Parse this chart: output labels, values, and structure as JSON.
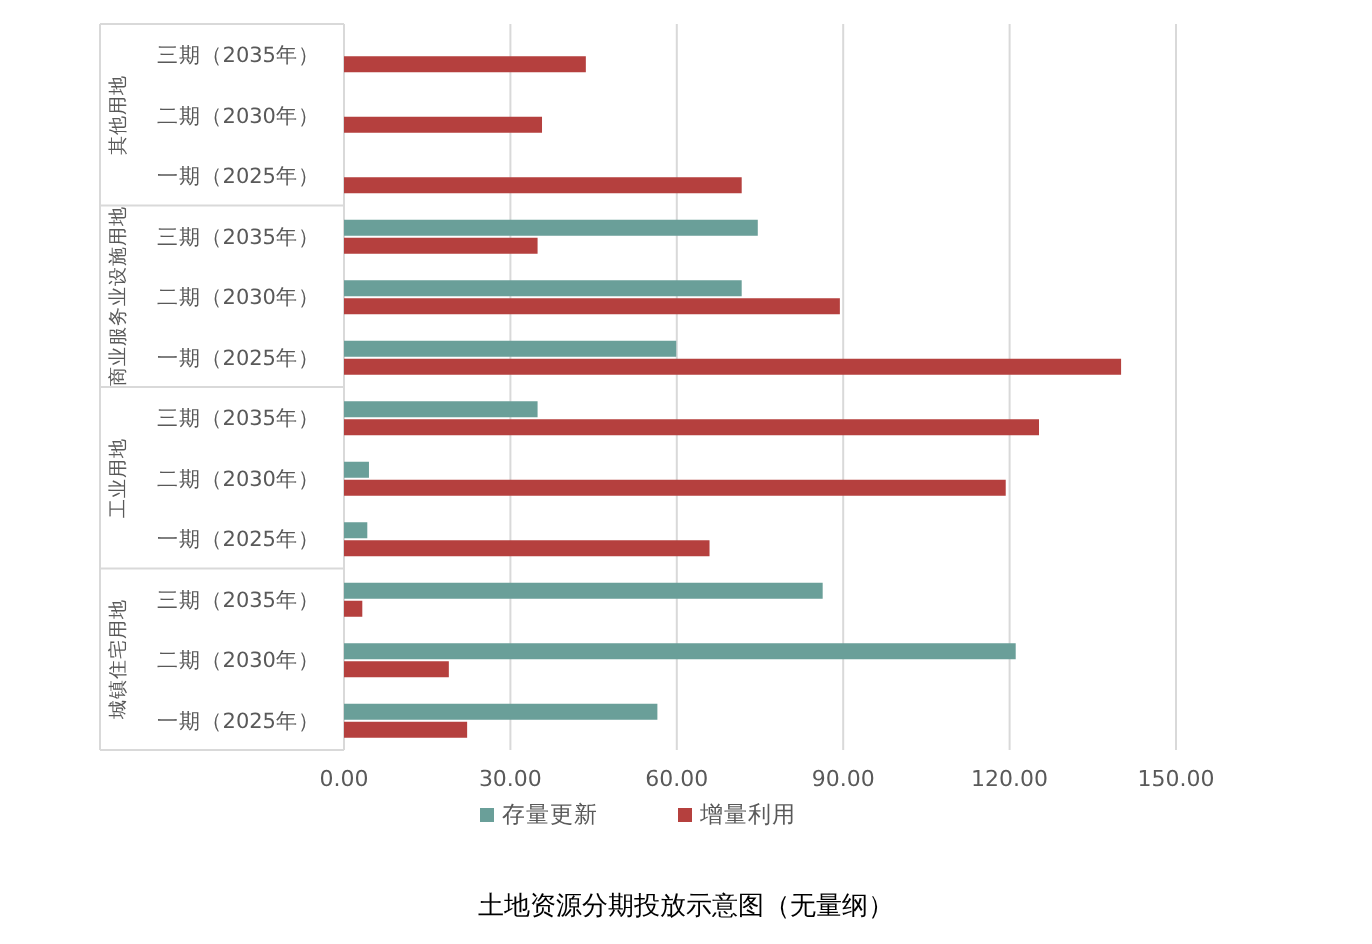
{
  "chart_data": {
    "type": "bar",
    "orientation": "horizontal",
    "title": "土地资源分期投放示意图（无量纲）",
    "categories": [
      "三期（2035年）",
      "二期（2030年）",
      "一期（2025年）",
      "三期（2035年）",
      "二期（2030年）",
      "一期（2025年）",
      "三期（2035年）",
      "二期（2030年）",
      "一期（2025年）",
      "三期（2035年）",
      "二期（2030年）",
      "一期（2025年）"
    ],
    "annotations": [
      "其他用地",
      "商业服务业设施用地",
      "工业用地",
      "城镇住宅用地"
    ],
    "series": [
      {
        "name": "存量更新",
        "color": "#6a9f99",
        "values": [
          null,
          null,
          null,
          74.6,
          71.7,
          59.9,
          34.9,
          4.5,
          4.2,
          86.3,
          121.1,
          56.5
        ]
      },
      {
        "name": "增量利用",
        "color": "#b5403e",
        "values": [
          43.6,
          35.7,
          71.7,
          34.9,
          89.4,
          140.1,
          125.3,
          119.3,
          65.9,
          3.3,
          18.9,
          22.2
        ]
      }
    ],
    "xlim": [
      0,
      150
    ],
    "xticks": [
      {
        "value": 0,
        "label": "0.00"
      },
      {
        "value": 30,
        "label": "30.00"
      },
      {
        "value": 60,
        "label": "60.00"
      },
      {
        "value": 90,
        "label": "90.00"
      },
      {
        "value": 120,
        "label": "120.00"
      },
      {
        "value": 150,
        "label": "150.00"
      }
    ],
    "grid": "x",
    "legend": "bottom"
  }
}
